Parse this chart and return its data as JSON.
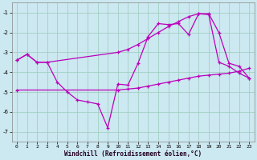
{
  "xlabel": "Windchill (Refroidissement éolien,°C)",
  "background_color": "#cce8f0",
  "grid_color": "#99ccbb",
  "line_color": "#bb00bb",
  "ylim": [
    -7.5,
    -0.5
  ],
  "xlim": [
    -0.5,
    23.5
  ],
  "yticks": [
    -7,
    -6,
    -5,
    -4,
    -3,
    -2,
    -1
  ],
  "xticks": [
    0,
    1,
    2,
    3,
    4,
    5,
    6,
    7,
    8,
    9,
    10,
    11,
    12,
    13,
    14,
    15,
    16,
    17,
    18,
    19,
    20,
    21,
    22,
    23
  ],
  "line1_x": [
    0,
    1,
    2,
    3,
    4,
    5,
    6,
    7,
    8,
    9,
    10,
    11,
    12,
    13,
    14,
    15,
    16,
    17,
    18,
    19,
    20,
    21,
    22,
    23
  ],
  "line1_y": [
    -3.4,
    -3.1,
    -3.5,
    -3.5,
    -4.5,
    -5.0,
    -5.4,
    -5.5,
    -5.6,
    -6.8,
    -4.6,
    -4.65,
    -3.55,
    -2.2,
    -1.55,
    -1.6,
    -1.55,
    -2.1,
    -1.05,
    -1.1,
    -3.5,
    -3.7,
    -4.05,
    -4.3
  ],
  "line2_x": [
    0,
    1,
    2,
    3,
    10,
    11,
    12,
    13,
    14,
    15,
    16,
    17,
    18,
    19,
    20,
    21,
    22,
    23
  ],
  "line2_y": [
    -3.4,
    -3.1,
    -3.5,
    -3.5,
    -3.0,
    -2.85,
    -2.6,
    -2.3,
    -2.0,
    -1.7,
    -1.45,
    -1.2,
    -1.05,
    -1.05,
    -2.0,
    -3.55,
    -3.7,
    -4.3
  ],
  "line3_x": [
    0,
    10,
    11,
    12,
    13,
    14,
    15,
    16,
    17,
    18,
    19,
    20,
    21,
    22,
    23
  ],
  "line3_y": [
    -4.9,
    -4.9,
    -4.85,
    -4.8,
    -4.7,
    -4.6,
    -4.5,
    -4.4,
    -4.3,
    -4.2,
    -4.15,
    -4.1,
    -4.05,
    -3.95,
    -3.8
  ]
}
